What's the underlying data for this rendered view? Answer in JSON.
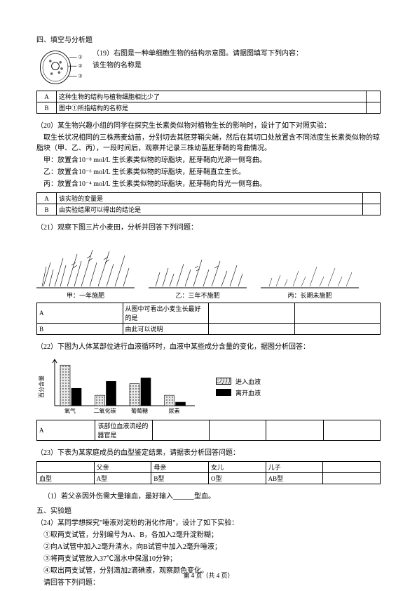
{
  "q19": {
    "intro": "四、填空与分析题",
    "num": "（19）",
    "stem1": "右图是一种单细胞生物的结构示意图。请据图填写下列内容：",
    "stem2": "该生物的名称是",
    "labels": {
      "a": "①",
      "b": "②",
      "c": "③"
    },
    "table": {
      "r1c1": "A",
      "r1c2": "这种生物的结构与植物细胞相比少了",
      "r1c3": "",
      "r2c1": "B",
      "r2c2": "图中①所指结构的名称是",
      "r2c3": ""
    }
  },
  "q20": {
    "num": "（20）",
    "line1": "某生物兴趣小组的同学在探究生长素类似物对植物生长的影响时，设计了如下对照实验：",
    "line2": "取生长状况相同的三株燕麦幼苗，分别切去其胚芽鞘尖端，然后在其切口处放置含不同浓度生长素类似物的琼脂块（甲、乙、丙），一段时间后，观察并记录三株幼苗胚芽鞘的弯曲情况。",
    "line3": "甲：放置含10⁻⁸ mol/L 生长素类似物的琼脂块，胚芽鞘向光源一侧弯曲。",
    "line4": "乙：放置含10⁻⁶ mol/L 生长素类似物的琼脂块，胚芽鞘直立生长。",
    "line5": "丙：放置含10⁻⁴ mol/L 生长素类似物的琼脂块，胚芽鞘向背光一侧弯曲。",
    "table": {
      "r1c1": "A",
      "r1c2": "该实验的变量是",
      "r1c3": "",
      "r2c1": "B",
      "r2c2": "由实验结果可以得出的结论是",
      "r2c3": ""
    }
  },
  "q21": {
    "num": "（21）",
    "stem": "观察下图三片小麦田，分析并回答下列问题：",
    "caps": {
      "a": "甲：一年施肥",
      "b": "乙：三年不施肥",
      "c": "丙：长期未施肥"
    },
    "table": {
      "r1c1": "A",
      "r1c2": "从图中可看出小麦生长最好的是",
      "r1c3": "",
      "r1c4": "",
      "r2c1": "B",
      "r2c2": "由此可以说明",
      "r2c3": "",
      "r2c4": ""
    }
  },
  "q22": {
    "num": "（22）",
    "stem": "下图为人体某部位进行血液循环时，血液中某些成分含量的变化，据图分析回答：",
    "chart": {
      "type": "bar",
      "categories": [
        "氧气",
        "二氧化碳",
        "葡萄糖",
        "尿素"
      ],
      "series": [
        {
          "name": "进入血液",
          "color": "#bfbfbf",
          "pattern": "dots",
          "values": [
            70,
            18,
            38,
            18
          ]
        },
        {
          "name": "离开血液",
          "color": "#000000",
          "pattern": "solid",
          "values": [
            30,
            42,
            48,
            6
          ]
        }
      ],
      "ylabel": "百分含量",
      "cat_fontsize": 8
    },
    "legend": {
      "a": "进入血液",
      "b": "离开血液"
    },
    "table": {
      "r1c1": "A",
      "r1c2": "该部位血液流经的器官是",
      "r1c3": "",
      "r1c4": "",
      "r1c5": "",
      "r1c6": ""
    }
  },
  "q23": {
    "num": "（23）",
    "stem": "下表为某家庭成员的血型鉴定结果，请据表分析回答问题：",
    "table": {
      "r1c1": "",
      "r1c2": "父亲",
      "r1c3": "母亲",
      "r1c4": "女儿",
      "r1c5": "儿子",
      "r1c6": "",
      "r2c1": "血型",
      "r2c2": "A型",
      "r2c3": "B型",
      "r2c4": "O型",
      "r2c5": "AB型",
      "r2c6": ""
    },
    "tail": "（1）若父亲因外伤需大量输血，最好输入______型血。"
  },
  "q24": {
    "num": "五、实验题",
    "line1": "（24）某同学想探究\"唾液对淀粉的消化作用\"，设计了如下实验：",
    "line2": "①取两支试管，分别编号为A、B，各加入2毫升淀粉糊；",
    "line3": "②向A试管中加入2毫升清水，向B试管中加入2毫升唾液；",
    "line4": "③将两支试管放入37℃温水中保温10分钟；",
    "line5": "④取出两支试管，分别滴加2滴碘液，观察颜色变化。",
    "line6": "请回答下列问题："
  },
  "footer": "第 4 页（共 4 页）"
}
